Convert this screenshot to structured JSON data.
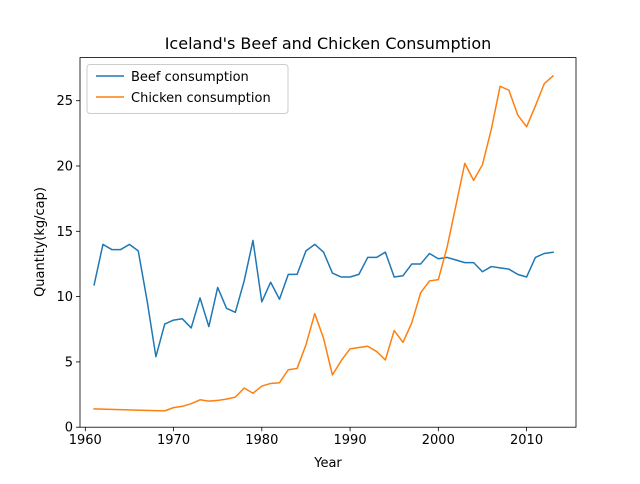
{
  "chart_data": {
    "type": "line",
    "title": "Iceland's Beef and Chicken Consumption",
    "xlabel": "Year",
    "ylabel": "Quantity(kg/cap)",
    "xlim": [
      1959.4,
      2015.6
    ],
    "ylim": [
      0,
      28.3
    ],
    "xticks": [
      1960,
      1970,
      1980,
      1990,
      2000,
      2010
    ],
    "yticks": [
      0,
      5,
      10,
      15,
      20,
      25
    ],
    "grid": false,
    "legend_position": "top-left",
    "series": [
      {
        "name": "Beef consumption",
        "color": "#1f77b4",
        "x": [
          1961,
          1962,
          1963,
          1964,
          1965,
          1966,
          1967,
          1968,
          1969,
          1970,
          1971,
          1972,
          1973,
          1974,
          1975,
          1976,
          1977,
          1978,
          1979,
          1980,
          1981,
          1982,
          1983,
          1984,
          1985,
          1986,
          1987,
          1988,
          1989,
          1990,
          1991,
          1992,
          1993,
          1994,
          1995,
          1996,
          1997,
          1998,
          1999,
          2000,
          2001,
          2002,
          2003,
          2004,
          2005,
          2006,
          2007,
          2008,
          2009,
          2010,
          2011,
          2012,
          2013
        ],
        "y": [
          10.9,
          14.0,
          13.6,
          13.6,
          14.0,
          13.5,
          9.7,
          5.4,
          7.9,
          8.2,
          8.3,
          7.6,
          9.9,
          7.7,
          10.7,
          9.1,
          8.8,
          11.2,
          14.3,
          9.6,
          11.1,
          9.8,
          11.7,
          11.7,
          13.5,
          14.0,
          13.4,
          11.8,
          11.5,
          11.5,
          11.7,
          13.0,
          13.0,
          13.4,
          11.5,
          11.6,
          12.5,
          12.5,
          13.3,
          12.9,
          13.0,
          12.8,
          12.6,
          12.6,
          11.9,
          12.3,
          12.2,
          12.1,
          11.7,
          11.5,
          13.0,
          13.3,
          13.4
        ]
      },
      {
        "name": "Chicken consumption",
        "color": "#ff7f0e",
        "x": [
          1961,
          1969,
          1970,
          1971,
          1972,
          1973,
          1974,
          1975,
          1976,
          1977,
          1978,
          1979,
          1980,
          1981,
          1982,
          1983,
          1984,
          1985,
          1986,
          1987,
          1988,
          1989,
          1990,
          1991,
          1992,
          1993,
          1994,
          1995,
          1996,
          1997,
          1998,
          1999,
          2000,
          2001,
          2002,
          2003,
          2004,
          2005,
          2006,
          2007,
          2008,
          2009,
          2010,
          2011,
          2012,
          2013
        ],
        "y": [
          1.4,
          1.25,
          1.5,
          1.6,
          1.8,
          2.1,
          2.0,
          2.05,
          2.15,
          2.3,
          3.0,
          2.6,
          3.15,
          3.35,
          3.4,
          4.4,
          4.5,
          6.3,
          8.7,
          6.8,
          4.0,
          5.1,
          6.0,
          6.1,
          6.2,
          5.8,
          5.15,
          7.4,
          6.5,
          8.0,
          10.3,
          11.2,
          11.3,
          13.8,
          17.0,
          20.2,
          18.9,
          20.1,
          22.8,
          26.1,
          25.8,
          23.9,
          23.0,
          24.6,
          26.3,
          26.9
        ]
      }
    ]
  }
}
